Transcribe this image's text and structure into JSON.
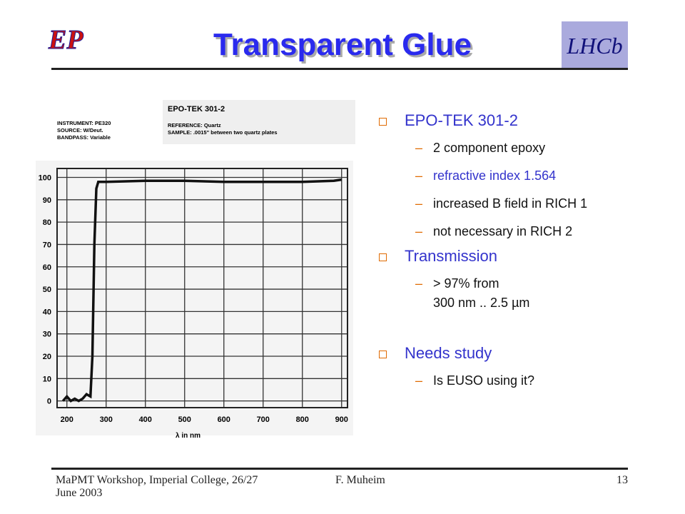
{
  "header": {
    "title": "Transparent Glue",
    "logo_left": "EP",
    "logo_right": "LHCb"
  },
  "bullets": [
    {
      "text": "EPO-TEK 301-2",
      "items": [
        {
          "lines": [
            "2 component epoxy"
          ]
        },
        {
          "lines": [
            "refractive index 1.564"
          ],
          "color": "#3333cc"
        },
        {
          "lines": [
            "increased B field in RICH 1"
          ]
        },
        {
          "lines": [
            "not necessary in RICH 2"
          ]
        }
      ]
    },
    {
      "text": "Transmission",
      "items": [
        {
          "lines": [
            "> 97% from",
            "300  nm .. 2.5 µm"
          ]
        }
      ]
    },
    {
      "text": "Needs study",
      "items": [
        {
          "lines": [
            "Is EUSO using it?"
          ]
        }
      ]
    }
  ],
  "figure": {
    "heading": "EPO-TEK 301-2",
    "left_notes": [
      "INSTRUMENT: PE320",
      "SOURCE: W/Deut.",
      "BANDPASS: Variable"
    ],
    "right_notes": [
      "REFERENCE: Quartz",
      "SAMPLE: .0015\" between two quartz plates"
    ],
    "chart_data": {
      "type": "line",
      "x_label": "λ in nm",
      "xlim": [
        175,
        915
      ],
      "ylim": [
        -3,
        104
      ],
      "xticks": [
        200,
        300,
        400,
        500,
        600,
        700,
        800,
        900
      ],
      "yticks": [
        0,
        10,
        20,
        30,
        40,
        50,
        60,
        70,
        80,
        90,
        100
      ],
      "grid": true,
      "color": "#111111",
      "x": [
        190,
        200,
        210,
        220,
        230,
        240,
        250,
        260,
        265,
        270,
        275,
        280,
        300,
        400,
        500,
        600,
        700,
        800,
        880,
        900
      ],
      "values": [
        0,
        2,
        0,
        1,
        0,
        1,
        3,
        2,
        20,
        70,
        95,
        98,
        98,
        98.5,
        98.5,
        98,
        98,
        98,
        98.5,
        99
      ]
    }
  },
  "footer": {
    "left": "MaPMT Workshop, Imperial College, 26/27 June 2003",
    "center": "F. Muheim",
    "right": "13"
  }
}
